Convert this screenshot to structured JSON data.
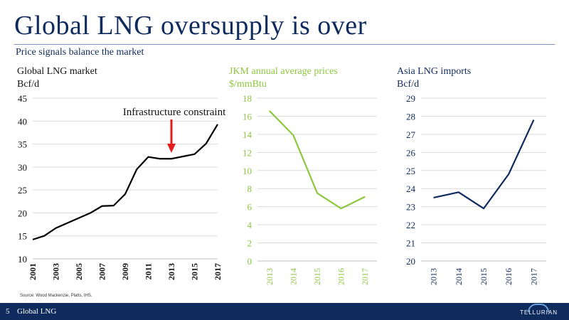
{
  "title": "Global LNG oversupply is over",
  "subtitle": "Price signals balance the market",
  "source": "Source: Wood Mackenzie, Platts, IHS.",
  "footer": {
    "page": "5",
    "label": "Global LNG",
    "logo": "TELLURIAN"
  },
  "colors": {
    "navy": "#0f2a5c",
    "green": "#8dc63f",
    "black": "#000000",
    "red": "#e31b1b"
  },
  "chart_data": [
    {
      "type": "line",
      "title": "Global LNG market",
      "ylabel": "Bcf/d",
      "x": [
        2001,
        2002,
        2003,
        2004,
        2005,
        2006,
        2007,
        2008,
        2009,
        2010,
        2011,
        2012,
        2013,
        2014,
        2015,
        2016,
        2017
      ],
      "x_tick_labels": [
        "2001",
        "2003",
        "2005",
        "2007",
        "2009",
        "2011",
        "2013",
        "2015",
        "2017"
      ],
      "values": [
        14.2,
        15.0,
        16.7,
        17.8,
        18.9,
        20.0,
        21.5,
        21.6,
        24.1,
        29.5,
        32.2,
        31.8,
        31.8,
        32.3,
        32.8,
        35.1,
        39.3
      ],
      "ylim": [
        10,
        45
      ],
      "yticks": [
        10,
        15,
        20,
        25,
        30,
        35,
        40,
        45
      ],
      "annotation": {
        "text": "Infrastructure constraint",
        "x": 2013
      },
      "color": "#000000"
    },
    {
      "type": "line",
      "title": "JKM annual average prices",
      "ylabel": "$/mmBtu",
      "x": [
        "2013",
        "2014",
        "2015",
        "2016",
        "2017"
      ],
      "values": [
        16.6,
        13.9,
        7.5,
        5.8,
        7.1
      ],
      "ylim": [
        0,
        18
      ],
      "yticks": [
        0,
        2,
        4,
        6,
        8,
        10,
        12,
        14,
        16,
        18
      ],
      "color": "#8dc63f"
    },
    {
      "type": "line",
      "title": "Asia LNG imports",
      "ylabel": "Bcf/d",
      "x": [
        "2013",
        "2014",
        "2015",
        "2016",
        "2017"
      ],
      "values": [
        23.5,
        23.8,
        22.9,
        24.8,
        27.8
      ],
      "ylim": [
        20,
        29
      ],
      "yticks": [
        20,
        21,
        22,
        23,
        24,
        25,
        26,
        27,
        28,
        29
      ],
      "color": "#0f2a5c"
    }
  ]
}
